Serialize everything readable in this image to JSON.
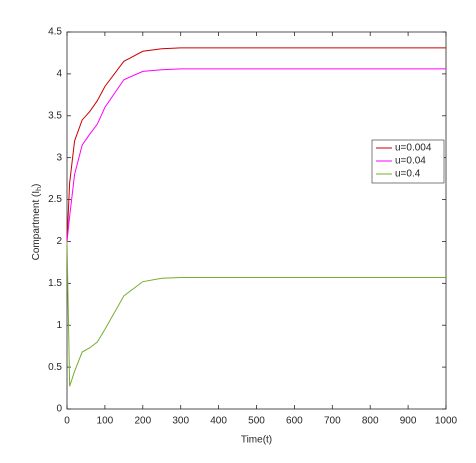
{
  "chart_data": {
    "type": "line",
    "xlabel": "Time(t)",
    "ylabel": "Compartment (I",
    "ylabel_sub": "h",
    "ylabel_end": ")",
    "x": [
      0,
      7,
      20,
      40,
      60,
      80,
      100,
      150,
      200,
      250,
      300,
      400,
      500,
      600,
      700,
      800,
      900,
      1000
    ],
    "series": [
      {
        "name": "u=0.004",
        "color": "#cc0000",
        "values": [
          2.0,
          2.7,
          3.2,
          3.45,
          3.55,
          3.68,
          3.85,
          4.15,
          4.27,
          4.3,
          4.31,
          4.31,
          4.31,
          4.31,
          4.31,
          4.31,
          4.31,
          4.31
        ]
      },
      {
        "name": "u=0.04",
        "color": "#ff00ff",
        "values": [
          2.0,
          2.3,
          2.8,
          3.15,
          3.28,
          3.4,
          3.6,
          3.93,
          4.03,
          4.05,
          4.06,
          4.06,
          4.06,
          4.06,
          4.06,
          4.06,
          4.06,
          4.06
        ]
      },
      {
        "name": "u=0.4",
        "color": "#77ac30",
        "values": [
          2.0,
          0.27,
          0.45,
          0.68,
          0.73,
          0.8,
          0.95,
          1.35,
          1.52,
          1.56,
          1.57,
          1.57,
          1.57,
          1.57,
          1.57,
          1.57,
          1.57,
          1.57
        ]
      }
    ],
    "xlim": [
      0,
      1000
    ],
    "xticks": [
      0,
      100,
      200,
      300,
      400,
      500,
      600,
      700,
      800,
      900,
      1000
    ],
    "ylim": [
      0,
      4.5
    ],
    "yticks": [
      0,
      0.5,
      1,
      1.5,
      2,
      2.5,
      3,
      3.5,
      4,
      4.5
    ],
    "grid": false,
    "legend": "right"
  }
}
